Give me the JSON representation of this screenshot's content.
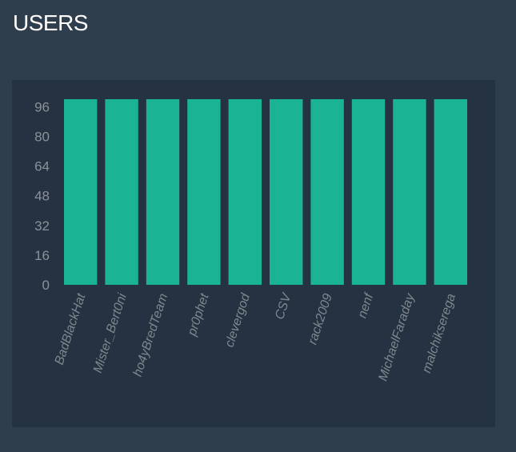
{
  "header": {
    "title": "USERS"
  },
  "colors": {
    "page_background": "#2f3e4d",
    "panel_background": "#243241",
    "bar": "#1ab394",
    "tick_text": "#8a9299"
  },
  "chart_data": {
    "type": "bar",
    "title": "",
    "xlabel": "",
    "ylabel": "",
    "categories": [
      "BadBlackHat",
      "Mister_Bert0ni",
      "ho4yBredTeam",
      "pr0phet",
      "clevergod",
      "CSV",
      "rack2009",
      "nenf",
      "MichaelFaraday",
      "malchikserega"
    ],
    "values": [
      100,
      100,
      100,
      100,
      100,
      100,
      100,
      100,
      100,
      100
    ],
    "yticks": [
      0,
      16,
      32,
      48,
      64,
      80,
      96
    ],
    "ylim": [
      0,
      100
    ],
    "grid": false,
    "legend": "none"
  }
}
